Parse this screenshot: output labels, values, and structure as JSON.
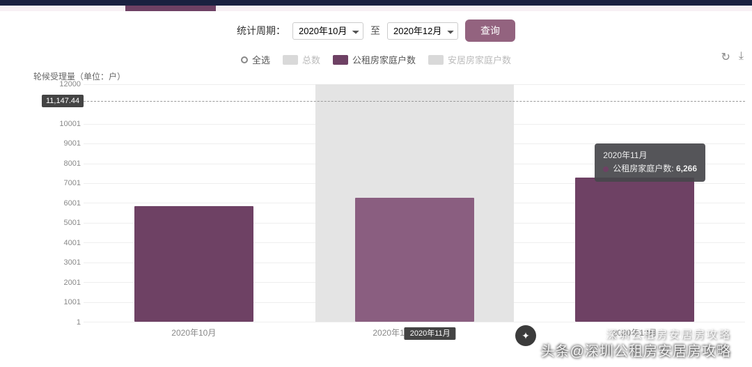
{
  "filter": {
    "label": "统计周期：",
    "from": "2020年10月",
    "sep": "至",
    "to": "2020年12月",
    "query_btn": "查询",
    "options_from": [
      "2020年10月"
    ],
    "options_to": [
      "2020年12月"
    ]
  },
  "legend": {
    "select_all": "全选",
    "items": [
      {
        "key": "total",
        "label": "总数",
        "color": "#d9d9d9",
        "active": false
      },
      {
        "key": "gongzu",
        "label": "公租房家庭户数",
        "color": "#6e4164",
        "active": true
      },
      {
        "key": "anju",
        "label": "安居房家庭户数",
        "color": "#d9d9d9",
        "active": false
      }
    ]
  },
  "tools": {
    "refresh": "↻",
    "download": "⤓"
  },
  "chart": {
    "type": "bar",
    "y_title": "轮候受理量（单位：户）",
    "y_min": 0,
    "y_max": 12000,
    "y_ticks": [
      1,
      1001,
      2001,
      3001,
      4001,
      5001,
      6001,
      7001,
      8001,
      9001,
      10001,
      12000
    ],
    "categories": [
      "2020年10月",
      "2020年11月",
      "2020年12月"
    ],
    "series_label": "公租房家庭户数",
    "values": [
      5850,
      6266,
      7300
    ],
    "bar_color": "#6e4164",
    "bar_highlight_color": "#8a5e80",
    "bar_width_pct": 18,
    "highlight_index": 1,
    "highlight_bg": "#e4e4e4",
    "reference_value": 11147.44,
    "reference_label": "11,147.44",
    "grid_color": "#eeeeee",
    "background": "#ffffff",
    "axis_font_size": 11
  },
  "tooltip": {
    "title": "2020年11月",
    "row_label": "公租房家庭户数:",
    "row_value": "6,266",
    "dot_color": "#6e4164"
  },
  "x_badge": {
    "text": "2020年11月"
  },
  "x_partial": "2020年1",
  "watermark": {
    "line1": "深圳公租房安居房攻略",
    "line2": "头条@深圳公租房安居房攻略"
  }
}
